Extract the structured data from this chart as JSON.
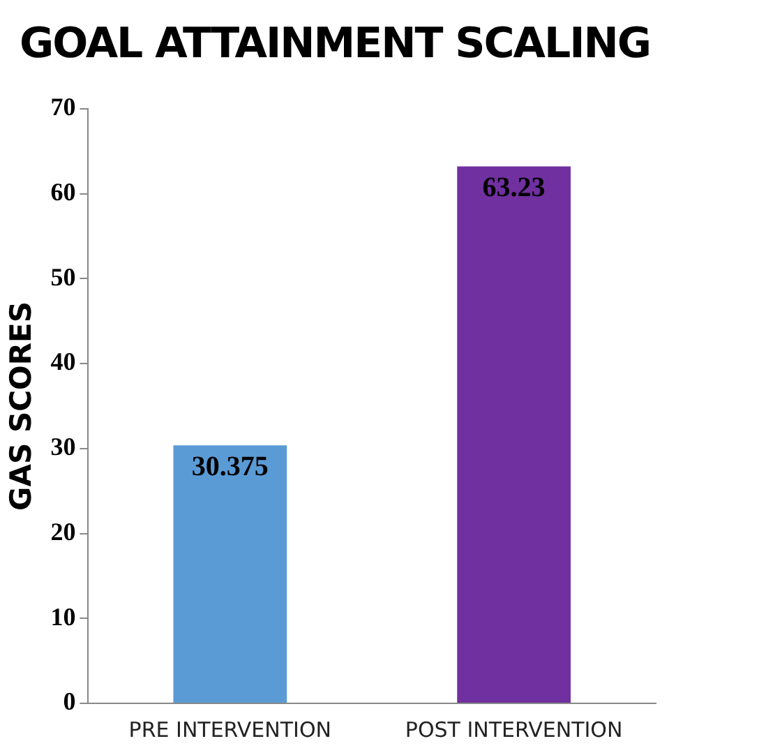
{
  "chart_data": {
    "type": "bar",
    "title": "GOAL ATTAINMENT SCALING",
    "ylabel": "GAS SCORES",
    "categories": [
      "PRE INTERVENTION",
      "POST INTERVENTION"
    ],
    "values": [
      30.375,
      63.23
    ],
    "colors": [
      "#5b9bd5",
      "#7030a0"
    ],
    "ylim": [
      0,
      70
    ],
    "yticks": [
      0,
      10,
      20,
      30,
      40,
      50,
      60,
      70
    ],
    "grid": false,
    "legend": false,
    "data_labels": true
  }
}
